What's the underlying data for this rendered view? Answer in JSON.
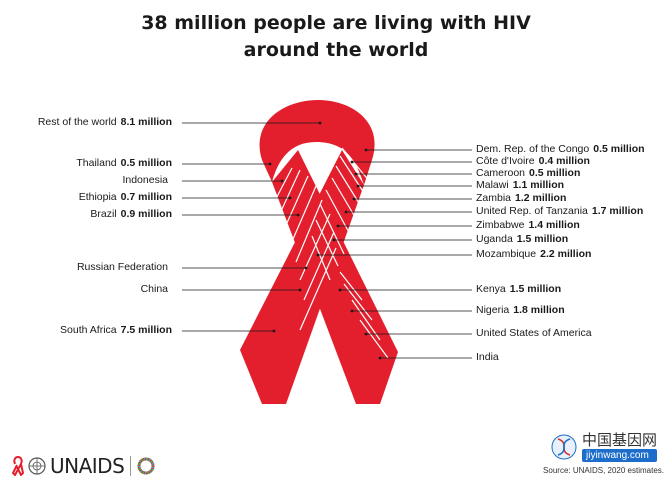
{
  "title": {
    "line1": "38 million people are living with HIV",
    "line2": "around the world"
  },
  "left_labels": [
    {
      "name": "Rest of the world",
      "value": "8.1 million"
    },
    {
      "name": "Thailand",
      "value": "0.5 million"
    },
    {
      "name": "Indonesia",
      "value": ""
    },
    {
      "name": "Ethiopia",
      "value": "0.7 million"
    },
    {
      "name": "Brazil",
      "value": "0.9 million"
    },
    {
      "name": "Russian Federation",
      "value": ""
    },
    {
      "name": "China",
      "value": ""
    },
    {
      "name": "South Africa",
      "value": "7.5 million"
    }
  ],
  "right_labels": [
    {
      "name": "Dem. Rep. of the Congo",
      "value": "0.5 million"
    },
    {
      "name": "Côte d'Ivoire",
      "value": "0.4 million"
    },
    {
      "name": "Cameroon",
      "value": "0.5 million"
    },
    {
      "name": "Malawi",
      "value": "1.1 million"
    },
    {
      "name": "Zambia",
      "value": "1.2 million"
    },
    {
      "name": "United Rep. of Tanzania",
      "value": "1.7 million"
    },
    {
      "name": "Zimbabwe",
      "value": "1.4 million"
    },
    {
      "name": "Uganda",
      "value": "1.5 million"
    },
    {
      "name": "Mozambique",
      "value": "2.2 million"
    },
    {
      "name": "Kenya",
      "value": "1.5 million"
    },
    {
      "name": "Nigeria",
      "value": "1.8 million"
    },
    {
      "name": "United States of America",
      "value": ""
    },
    {
      "name": "India",
      "value": ""
    }
  ],
  "logo": {
    "text": "UNAIDS"
  },
  "watermark": {
    "cn": "中国基因网",
    "url": "jiyinwang.com"
  },
  "source": "Source: UNAIDS, 2020 estimates.",
  "colors": {
    "ribbon": "#e41f2d",
    "line": "#1a1a1a"
  }
}
